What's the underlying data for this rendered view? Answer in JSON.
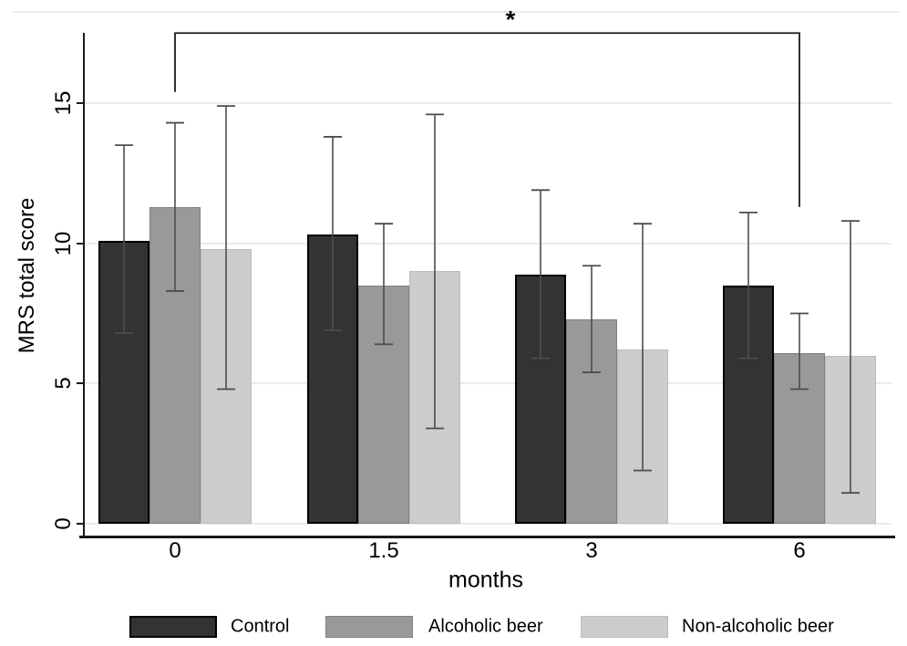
{
  "chart_data": {
    "type": "bar",
    "title": "",
    "xlabel": "months",
    "ylabel": "MRS total score",
    "categories": [
      "0",
      "1.5",
      "3",
      "6"
    ],
    "series": [
      {
        "name": "Control",
        "fill": "#333333",
        "border": "#000000",
        "values": [
          10.1,
          10.3,
          8.9,
          8.5
        ],
        "ci_low": [
          6.8,
          6.9,
          5.9,
          5.9
        ],
        "ci_high": [
          13.5,
          13.8,
          11.9,
          11.1
        ]
      },
      {
        "name": "Alcoholic beer",
        "fill": "#999999",
        "border": "#808080",
        "values": [
          11.3,
          8.5,
          7.3,
          6.1
        ],
        "ci_low": [
          8.3,
          6.4,
          5.4,
          4.8
        ],
        "ci_high": [
          14.3,
          10.7,
          9.2,
          7.5
        ]
      },
      {
        "name": "Non-alcoholic beer",
        "fill": "#cccccc",
        "border": "#bdbdbd",
        "values": [
          9.8,
          9.0,
          6.2,
          6.0
        ],
        "ci_low": [
          4.8,
          3.4,
          1.9,
          1.1
        ],
        "ci_high": [
          14.9,
          14.6,
          10.7,
          10.8
        ]
      }
    ],
    "y_ticks": [
      "0",
      "5",
      "10",
      "15"
    ],
    "y_tick_values": [
      0,
      5,
      10,
      15
    ],
    "ylim": [
      0,
      17.5
    ],
    "grid": true,
    "grid_color": "#e2edf0",
    "error_bar_color": "#4d4d4d",
    "axis_color": "#1a1a1a",
    "legend_position": "bottom",
    "significance": {
      "label": "*",
      "series": "Alcoholic beer",
      "from_category": "0",
      "to_category": "6",
      "bracket_top_value": 17.5,
      "left_drop_to_value": 15.4,
      "right_drop_to_value": 11.3
    }
  }
}
